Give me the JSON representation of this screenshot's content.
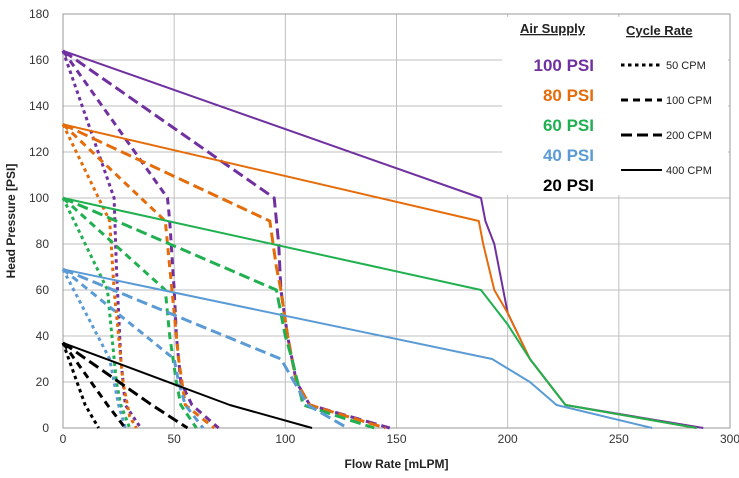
{
  "chart_data": {
    "type": "line",
    "title": "",
    "xlabel": "Flow Rate [mLPM]",
    "ylabel": "Head Pressure [PSI]",
    "xlim": [
      0,
      300
    ],
    "ylim": [
      0,
      180
    ],
    "xticks": [
      0,
      50,
      100,
      150,
      200,
      250,
      300
    ],
    "yticks": [
      0,
      20,
      40,
      60,
      80,
      100,
      120,
      140,
      160,
      180
    ],
    "grid": true,
    "legend": {
      "placement": "top-right",
      "air_supply_title": "Air Supply",
      "cycle_rate_title": "Cycle Rate",
      "air_supply": [
        {
          "label": "100 PSI",
          "color": "#7030A0"
        },
        {
          "label": "80 PSI",
          "color": "#E46C0A"
        },
        {
          "label": "60 PSI",
          "color": "#20B050"
        },
        {
          "label": "40 PSI",
          "color": "#5B9BD5"
        },
        {
          "label": "20 PSI",
          "color": "#000000"
        }
      ],
      "cycle_rate": [
        {
          "label": "50 CPM",
          "style": "dot"
        },
        {
          "label": "100 CPM",
          "style": "dash"
        },
        {
          "label": "200 CPM",
          "style": "bold"
        },
        {
          "label": "400 CPM",
          "style": "solid"
        }
      ]
    },
    "series": [
      {
        "supply": "100 PSI",
        "rate": "400 CPM",
        "color": "#7030A0",
        "style": "solid",
        "points": [
          [
            0,
            164
          ],
          [
            188,
            100
          ],
          [
            190,
            90
          ],
          [
            194,
            80
          ],
          [
            200,
            50
          ],
          [
            210,
            30
          ],
          [
            226,
            10
          ],
          [
            288,
            0
          ]
        ]
      },
      {
        "supply": "100 PSI",
        "rate": "200 CPM",
        "color": "#7030A0",
        "style": "bold",
        "points": [
          [
            0,
            164
          ],
          [
            95,
            100
          ],
          [
            97,
            80
          ],
          [
            98,
            60
          ],
          [
            101,
            40
          ],
          [
            105,
            20
          ],
          [
            111,
            10
          ],
          [
            147,
            0
          ]
        ]
      },
      {
        "supply": "100 PSI",
        "rate": "100 CPM",
        "color": "#7030A0",
        "style": "dash",
        "points": [
          [
            0,
            164
          ],
          [
            47,
            100
          ],
          [
            48,
            90
          ],
          [
            50,
            60
          ],
          [
            51,
            40
          ],
          [
            53,
            20
          ],
          [
            58,
            10
          ],
          [
            70,
            0
          ]
        ]
      },
      {
        "supply": "100 PSI",
        "rate": "50 CPM",
        "color": "#7030A0",
        "style": "dot",
        "points": [
          [
            0,
            164
          ],
          [
            23,
            100
          ],
          [
            24,
            70
          ],
          [
            25,
            50
          ],
          [
            26,
            30
          ],
          [
            28,
            10
          ],
          [
            35,
            0
          ]
        ]
      },
      {
        "supply": "80 PSI",
        "rate": "400 CPM",
        "color": "#E46C0A",
        "style": "solid",
        "points": [
          [
            0,
            132
          ],
          [
            187,
            90
          ],
          [
            189,
            80
          ],
          [
            194,
            60
          ],
          [
            200,
            50
          ],
          [
            210,
            30
          ],
          [
            226,
            10
          ],
          [
            285,
            0
          ]
        ]
      },
      {
        "supply": "80 PSI",
        "rate": "200 CPM",
        "color": "#E46C0A",
        "style": "bold",
        "points": [
          [
            0,
            132
          ],
          [
            93,
            90
          ],
          [
            96,
            70
          ],
          [
            98,
            60
          ],
          [
            101,
            40
          ],
          [
            105,
            20
          ],
          [
            111,
            10
          ],
          [
            145,
            0
          ]
        ]
      },
      {
        "supply": "80 PSI",
        "rate": "100 CPM",
        "color": "#E46C0A",
        "style": "dash",
        "points": [
          [
            0,
            132
          ],
          [
            46,
            90
          ],
          [
            48,
            70
          ],
          [
            50,
            50
          ],
          [
            52,
            30
          ],
          [
            55,
            10
          ],
          [
            68,
            0
          ]
        ]
      },
      {
        "supply": "80 PSI",
        "rate": "50 CPM",
        "color": "#E46C0A",
        "style": "dot",
        "points": [
          [
            0,
            132
          ],
          [
            21,
            90
          ],
          [
            23,
            60
          ],
          [
            25,
            40
          ],
          [
            27,
            20
          ],
          [
            30,
            5
          ],
          [
            33,
            0
          ]
        ]
      },
      {
        "supply": "60 PSI",
        "rate": "400 CPM",
        "color": "#20B050",
        "style": "solid",
        "points": [
          [
            0,
            100
          ],
          [
            188,
            60
          ],
          [
            200,
            45
          ],
          [
            210,
            30
          ],
          [
            226,
            10
          ],
          [
            285,
            0
          ]
        ]
      },
      {
        "supply": "60 PSI",
        "rate": "200 CPM",
        "color": "#20B050",
        "style": "bold",
        "points": [
          [
            0,
            100
          ],
          [
            96,
            60
          ],
          [
            100,
            40
          ],
          [
            103,
            30
          ],
          [
            108,
            10
          ],
          [
            140,
            0
          ]
        ]
      },
      {
        "supply": "60 PSI",
        "rate": "100 CPM",
        "color": "#20B050",
        "style": "dash",
        "points": [
          [
            0,
            100
          ],
          [
            46,
            60
          ],
          [
            48,
            40
          ],
          [
            51,
            20
          ],
          [
            53,
            10
          ],
          [
            60,
            0
          ]
        ]
      },
      {
        "supply": "60 PSI",
        "rate": "50 CPM",
        "color": "#20B050",
        "style": "dot",
        "points": [
          [
            0,
            100
          ],
          [
            20,
            60
          ],
          [
            22,
            40
          ],
          [
            24,
            20
          ],
          [
            26,
            10
          ],
          [
            30,
            0
          ]
        ]
      },
      {
        "supply": "40 PSI",
        "rate": "400 CPM",
        "color": "#5B9BD5",
        "style": "solid",
        "points": [
          [
            0,
            69
          ],
          [
            193,
            30
          ],
          [
            210,
            20
          ],
          [
            222,
            10
          ],
          [
            265,
            0
          ]
        ]
      },
      {
        "supply": "40 PSI",
        "rate": "200 CPM",
        "color": "#5B9BD5",
        "style": "bold",
        "points": [
          [
            0,
            69
          ],
          [
            98,
            30
          ],
          [
            104,
            20
          ],
          [
            110,
            10
          ],
          [
            128,
            0
          ]
        ]
      },
      {
        "supply": "40 PSI",
        "rate": "100 CPM",
        "color": "#5B9BD5",
        "style": "dash",
        "points": [
          [
            0,
            69
          ],
          [
            50,
            30
          ],
          [
            52,
            20
          ],
          [
            55,
            10
          ],
          [
            63,
            0
          ]
        ]
      },
      {
        "supply": "40 PSI",
        "rate": "50 CPM",
        "color": "#5B9BD5",
        "style": "dot",
        "points": [
          [
            0,
            69
          ],
          [
            21,
            30
          ],
          [
            23,
            20
          ],
          [
            25,
            10
          ],
          [
            28,
            0
          ]
        ]
      },
      {
        "supply": "20 PSI",
        "rate": "400 CPM",
        "color": "#000000",
        "style": "solid",
        "points": [
          [
            0,
            37
          ],
          [
            75,
            10
          ],
          [
            112,
            0
          ]
        ]
      },
      {
        "supply": "20 PSI",
        "rate": "200 CPM",
        "color": "#000000",
        "style": "bold",
        "points": [
          [
            0,
            37
          ],
          [
            40,
            10
          ],
          [
            56,
            0
          ]
        ]
      },
      {
        "supply": "20 PSI",
        "rate": "100 CPM",
        "color": "#000000",
        "style": "dash",
        "points": [
          [
            0,
            37
          ],
          [
            20,
            10
          ],
          [
            28,
            0
          ]
        ]
      },
      {
        "supply": "20 PSI",
        "rate": "50 CPM",
        "color": "#000000",
        "style": "dot",
        "points": [
          [
            0,
            37
          ],
          [
            10,
            10
          ],
          [
            16,
            0
          ]
        ]
      }
    ]
  }
}
